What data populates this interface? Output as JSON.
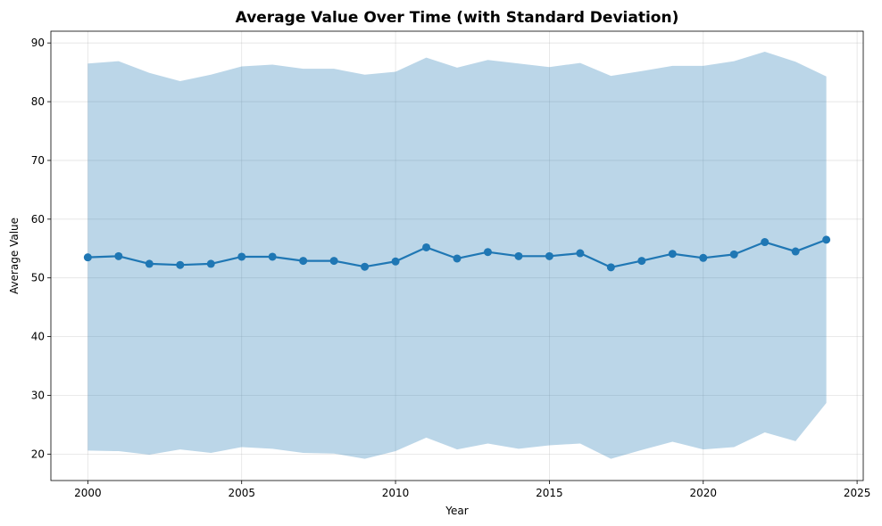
{
  "chart_data": {
    "type": "line",
    "title": "Average Value Over Time (with Standard Deviation)",
    "xlabel": "Year",
    "ylabel": "Average Value",
    "xlim": [
      1998.8,
      2025.2
    ],
    "ylim": [
      15.5,
      92
    ],
    "xticks": [
      2000,
      2005,
      2010,
      2015,
      2020,
      2025
    ],
    "yticks": [
      20,
      30,
      40,
      50,
      60,
      70,
      80,
      90
    ],
    "grid": true,
    "colors": {
      "line": "#1f77b4",
      "band": "#1f77b4"
    },
    "x": [
      2000,
      2001,
      2002,
      2003,
      2004,
      2005,
      2006,
      2007,
      2008,
      2009,
      2010,
      2011,
      2012,
      2013,
      2014,
      2015,
      2016,
      2017,
      2018,
      2019,
      2020,
      2021,
      2022,
      2023,
      2024
    ],
    "series": [
      {
        "values": [
          53.5,
          53.7,
          52.4,
          52.2,
          52.4,
          53.6,
          53.6,
          52.9,
          52.9,
          51.9,
          52.8,
          55.2,
          53.3,
          54.4,
          53.7,
          53.7,
          54.2,
          51.8,
          52.9,
          54.1,
          53.4,
          54.0,
          56.1,
          54.5,
          56.5
        ],
        "upper": [
          86.5,
          86.9,
          84.9,
          83.5,
          84.6,
          86.0,
          86.3,
          85.6,
          85.6,
          84.6,
          85.1,
          87.5,
          85.8,
          87.1,
          86.5,
          85.9,
          86.6,
          84.4,
          85.2,
          86.1,
          86.1,
          86.9,
          88.5,
          86.8,
          84.3
        ],
        "lower": [
          20.6,
          20.5,
          19.9,
          20.8,
          20.2,
          21.2,
          20.9,
          20.2,
          20.1,
          19.2,
          20.5,
          22.8,
          20.8,
          21.8,
          20.9,
          21.5,
          21.8,
          19.2,
          20.7,
          22.1,
          20.8,
          21.2,
          23.7,
          22.2,
          28.7
        ]
      }
    ]
  }
}
